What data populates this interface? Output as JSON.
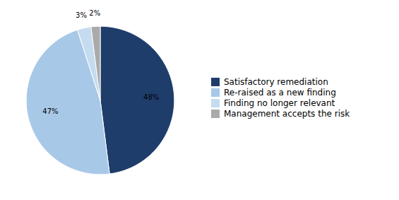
{
  "chart_data": {
    "type": "pie",
    "categories": [
      "Satisfactory remediation",
      "Re-raised as a new finding",
      "Finding no longer relevant",
      "Management accepts the risk"
    ],
    "values": [
      48,
      47,
      3,
      2
    ],
    "value_labels": [
      "48%",
      "47%",
      "3%",
      "2%"
    ],
    "colors": [
      "#1F3D6B",
      "#A8C8E8",
      "#C5DCF0",
      "#AAAAAA"
    ],
    "data_labels": true,
    "legend": "right"
  }
}
